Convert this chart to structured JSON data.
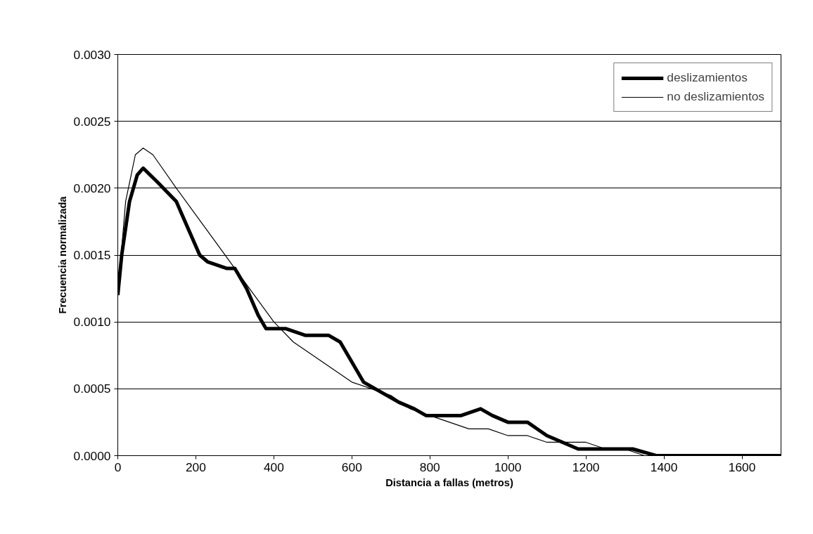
{
  "chart_data": {
    "type": "line",
    "xlabel": "Distancia a fallas (metros)",
    "ylabel": "Frecuencia normalizada",
    "xlim": [
      0,
      1700
    ],
    "xticks": [
      0,
      200,
      400,
      600,
      800,
      1000,
      1200,
      1400,
      1600
    ],
    "ylim": [
      0,
      0.003
    ],
    "yticks": [
      {
        "value": 0,
        "label": "0.0000"
      },
      {
        "value": 0.0005,
        "label": "0.0005"
      },
      {
        "value": 0.001,
        "label": "0.0010"
      },
      {
        "value": 0.0015,
        "label": "0.0015"
      },
      {
        "value": 0.002,
        "label": "0.0020"
      },
      {
        "value": 0.0025,
        "label": "0.0025"
      },
      {
        "value": 0.003,
        "label": "0.0030"
      }
    ],
    "grid": "y",
    "legend": "top right",
    "marker": "none",
    "series": [
      {
        "name": "deslizamientos",
        "color": "#000000",
        "x": [
          0,
          10,
          30,
          50,
          65,
          100,
          150,
          180,
          210,
          230,
          280,
          300,
          330,
          360,
          380,
          430,
          480,
          510,
          540,
          570,
          600,
          630,
          660,
          690,
          720,
          760,
          790,
          830,
          880,
          930,
          960,
          1000,
          1050,
          1100,
          1140,
          1180,
          1240,
          1280,
          1320,
          1380,
          1450,
          1600,
          1650,
          1700
        ],
        "values": [
          0.0012,
          0.0015,
          0.0019,
          0.0021,
          0.00215,
          0.00205,
          0.0019,
          0.0017,
          0.0015,
          0.00145,
          0.0014,
          0.0014,
          0.00125,
          0.00105,
          0.00095,
          0.00095,
          0.0009,
          0.0009,
          0.0009,
          0.00085,
          0.0007,
          0.00055,
          0.0005,
          0.00045,
          0.0004,
          0.00035,
          0.0003,
          0.0003,
          0.0003,
          0.00035,
          0.0003,
          0.00025,
          0.00025,
          0.00015,
          0.0001,
          5e-05,
          5e-05,
          5e-05,
          5e-05,
          0,
          0,
          0,
          0,
          0
        ]
      },
      {
        "name": "no deslizamientos",
        "color": "#000000",
        "x": [
          0,
          20,
          45,
          65,
          90,
          150,
          200,
          250,
          300,
          350,
          400,
          450,
          500,
          550,
          600,
          650,
          700,
          750,
          800,
          850,
          900,
          950,
          1000,
          1050,
          1100,
          1150,
          1200,
          1250,
          1300,
          1350,
          1400,
          1500,
          1700
        ],
        "values": [
          0.0012,
          0.0019,
          0.00225,
          0.0023,
          0.00225,
          0.002,
          0.0018,
          0.0016,
          0.0014,
          0.0012,
          0.001,
          0.00085,
          0.00075,
          0.00065,
          0.00055,
          0.0005,
          0.00045,
          0.00035,
          0.0003,
          0.00025,
          0.0002,
          0.0002,
          0.00015,
          0.00015,
          0.0001,
          0.0001,
          0.0001,
          5e-05,
          5e-05,
          0,
          0,
          0,
          0
        ]
      }
    ]
  }
}
